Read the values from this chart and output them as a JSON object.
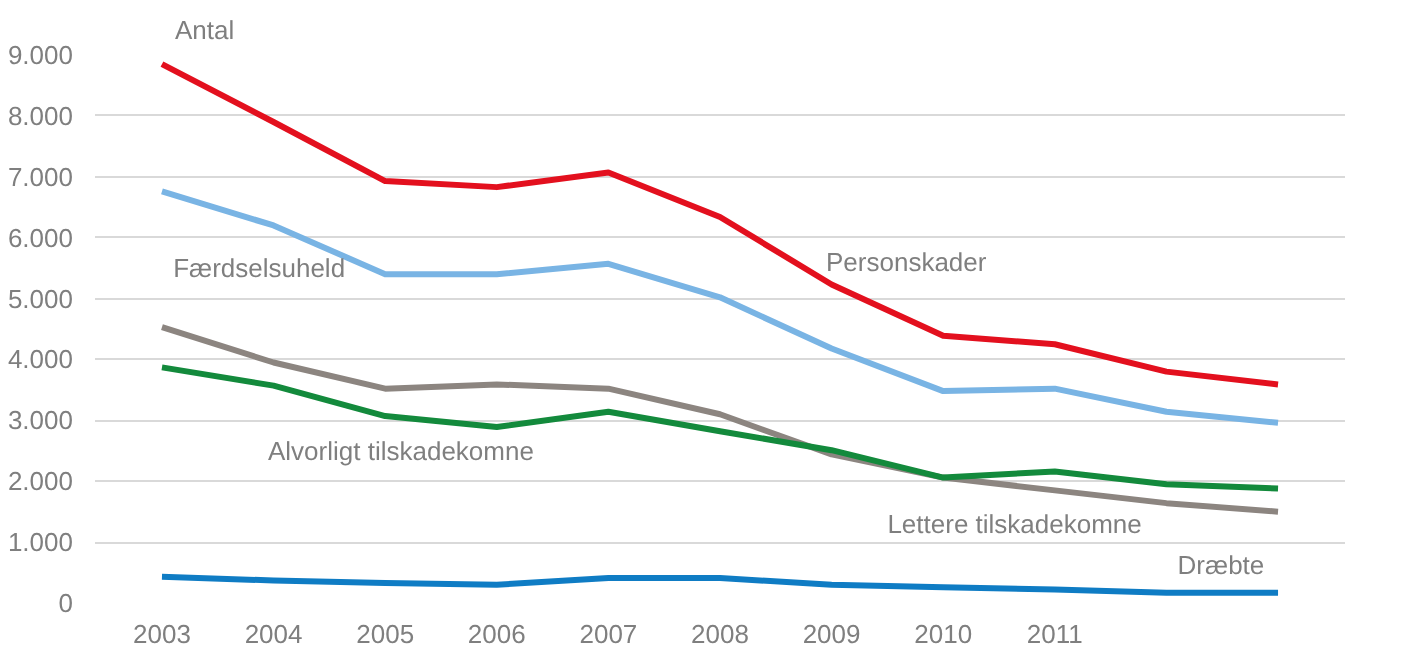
{
  "chart_data": {
    "type": "line",
    "ylabel": "Antal",
    "categories": [
      "2003",
      "2004",
      "2005",
      "2006",
      "2007",
      "2008",
      "2009",
      "2010",
      "2011",
      null,
      null
    ],
    "series": [
      {
        "name": "Personskader",
        "color": "#e3101e",
        "values": [
          8850,
          7900,
          6930,
          6830,
          7070,
          6340,
          5230,
          4390,
          4250,
          3800,
          3590
        ]
      },
      {
        "name": "Færdselsuheld",
        "color": "#79b4e4",
        "values": [
          6760,
          6200,
          5400,
          5400,
          5570,
          5020,
          4180,
          3480,
          3520,
          3140,
          2960
        ]
      },
      {
        "name": "Lettere tilskadekomne",
        "color": "#8c8580",
        "values": [
          4530,
          3950,
          3520,
          3590,
          3520,
          3100,
          2440,
          2060,
          1850,
          1640,
          1500
        ]
      },
      {
        "name": "Alvorligt tilskadekomne",
        "color": "#138a3c",
        "values": [
          3870,
          3570,
          3070,
          2890,
          3140,
          2820,
          2510,
          2060,
          2160,
          1950,
          1880
        ]
      },
      {
        "name": "Dræbte",
        "color": "#0f7cc4",
        "values": [
          430,
          370,
          330,
          300,
          410,
          410,
          300,
          260,
          220,
          170,
          170
        ]
      }
    ],
    "ylim": [
      0,
      9000
    ],
    "yticks": [
      {
        "value": 0,
        "label": "0"
      },
      {
        "value": 1000,
        "label": "1.000"
      },
      {
        "value": 2000,
        "label": "2.000"
      },
      {
        "value": 3000,
        "label": "3.000"
      },
      {
        "value": 4000,
        "label": "4.000"
      },
      {
        "value": 5000,
        "label": "5.000"
      },
      {
        "value": 6000,
        "label": "6.000"
      },
      {
        "value": 7000,
        "label": "7.000"
      },
      {
        "value": 8000,
        "label": "8.000"
      },
      {
        "value": 9000,
        "label": "9.000"
      }
    ],
    "grid": "y",
    "legend": false,
    "marker": "none",
    "line_style": "solid"
  }
}
